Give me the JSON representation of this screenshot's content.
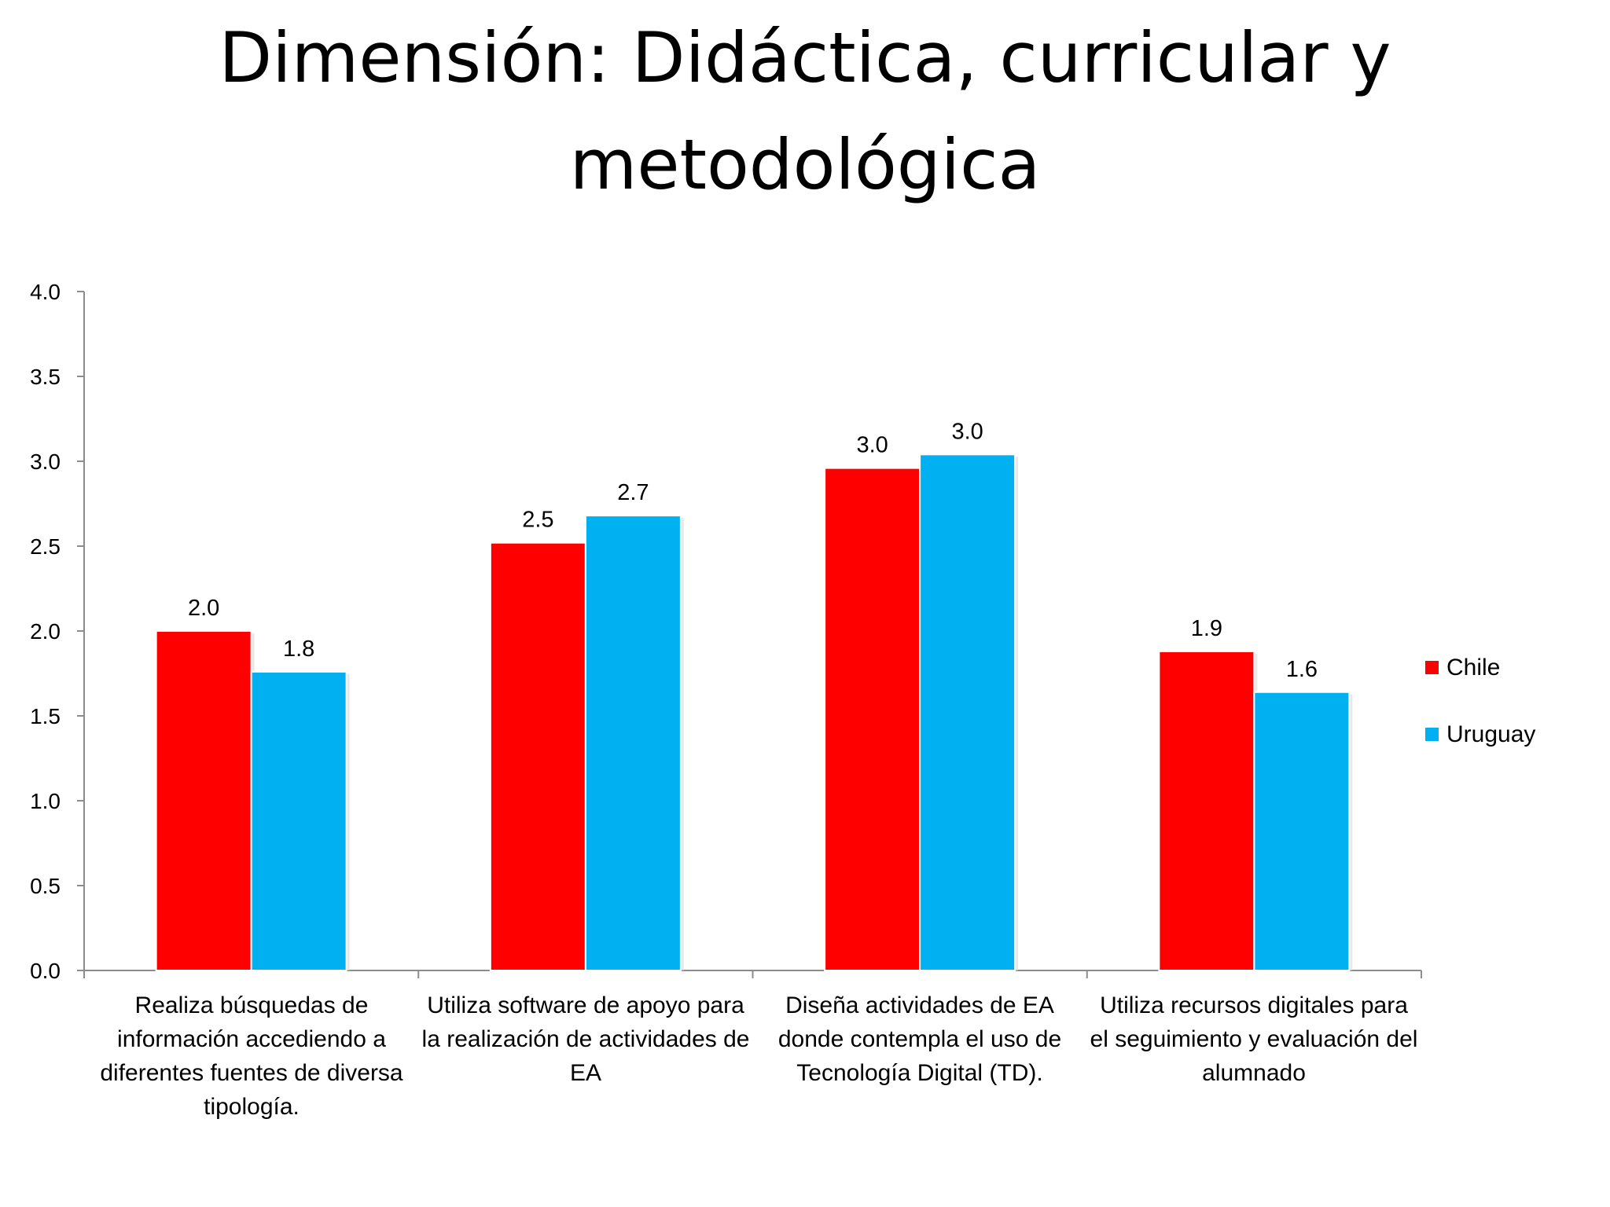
{
  "title": {
    "line1": "Dimensión: Didáctica, curricular y",
    "line2": "metodológica"
  },
  "chart_data": {
    "type": "bar",
    "title": "Dimensión: Didáctica, curricular y metodológica",
    "categories": [
      "Realiza búsquedas de información accediendo a diferentes fuentes de diversa tipología.",
      "Utiliza software de apoyo para la realización de actividades de EA",
      "Diseña actividades de EA donde contempla el uso de Tecnología Digital (TD).",
      "Utiliza recursos digitales para el seguimiento y evaluación del alumnado"
    ],
    "series": [
      {
        "name": "Chile",
        "color": "#ff0000",
        "values": [
          2.0,
          2.52,
          2.96,
          1.88
        ],
        "labels": [
          "2.0",
          "2.5",
          "3.0",
          "1.9"
        ]
      },
      {
        "name": "Uruguay",
        "color": "#00b0f0",
        "values": [
          1.76,
          2.68,
          3.04,
          1.64
        ],
        "labels": [
          "1.8",
          "2.7",
          "3.0",
          "1.6"
        ]
      }
    ],
    "ylim": [
      0,
      4
    ],
    "yticks": [
      "0.0",
      "0.5",
      "1.0",
      "1.5",
      "2.0",
      "2.5",
      "3.0",
      "3.5",
      "4.0"
    ],
    "legend_position": "right",
    "grid": false
  }
}
